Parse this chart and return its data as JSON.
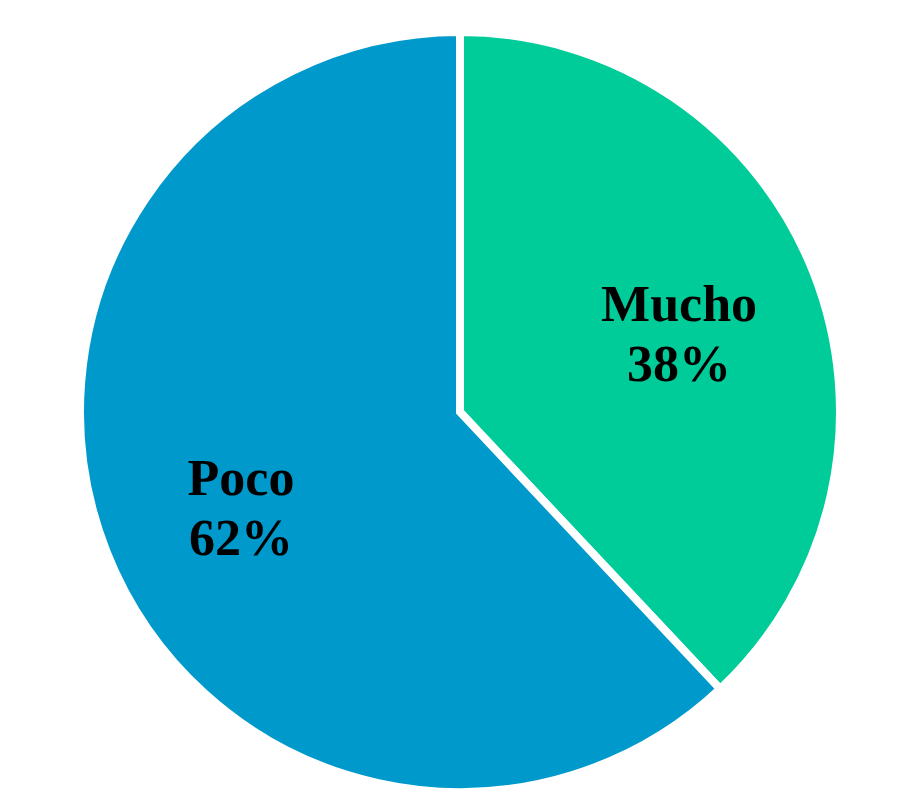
{
  "chart_data": {
    "type": "pie",
    "categories": [
      "Mucho",
      "Poco"
    ],
    "values": [
      38,
      62
    ],
    "colors": [
      "#00cc99",
      "#0099cc"
    ],
    "value_labels": [
      "38%",
      "62%"
    ]
  }
}
